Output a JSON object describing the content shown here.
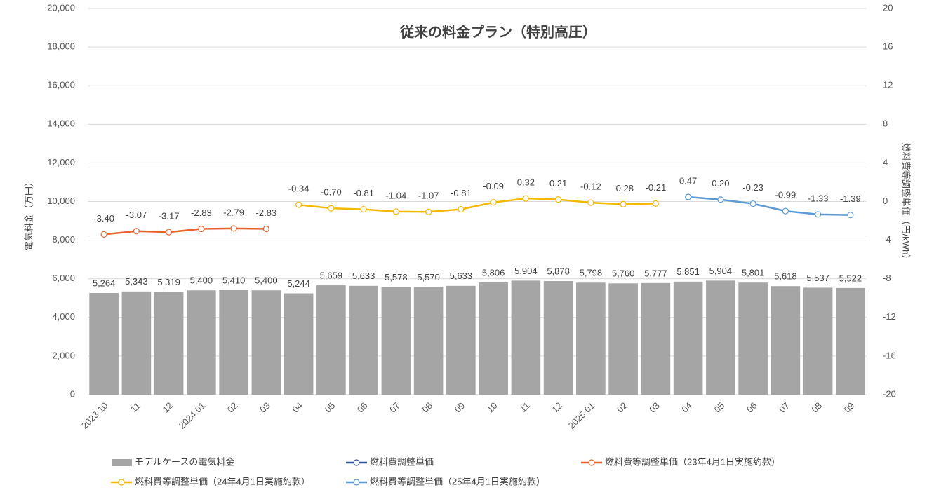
{
  "chart_data": {
    "type": "bar",
    "title": "従来の料金プラン（特別高圧）",
    "y_label": "電気料金（万円）",
    "y2_label": "燃料費等調整単価（円/kWh）",
    "categories": [
      "2023.10",
      "11",
      "12",
      "2024.01",
      "02",
      "03",
      "04",
      "05",
      "06",
      "07",
      "08",
      "09",
      "10",
      "11",
      "12",
      "2025.01",
      "02",
      "03",
      "04",
      "05",
      "06",
      "07",
      "08",
      "09"
    ],
    "series": [
      {
        "name": "モデルケースの電気料金",
        "type": "bar",
        "color": "#a5a5a5",
        "values": [
          5264,
          5343,
          5319,
          5400,
          5410,
          5400,
          5244,
          5659,
          5633,
          5578,
          5570,
          5633,
          5806,
          5904,
          5878,
          5798,
          5760,
          5777,
          5851,
          5904,
          5801,
          5618,
          5537,
          5522
        ],
        "value_labels": [
          "5,264",
          "5,343",
          "5,319",
          "5,400",
          "5,410",
          "5,400",
          "5,244",
          "5,659",
          "5,633",
          "5,578",
          "5,570",
          "5,633",
          "5,806",
          "5,904",
          "5,878",
          "5,798",
          "5,760",
          "5,777",
          "5,851",
          "5,904",
          "5,801",
          "5,618",
          "5,537",
          "5,522"
        ]
      },
      {
        "name": "燃料費調整単価",
        "type": "line",
        "axis": "y2",
        "color": "#2f5597",
        "values": [
          null,
          null,
          null,
          null,
          null,
          null,
          null,
          null,
          null,
          null,
          null,
          null,
          null,
          null,
          null,
          null,
          null,
          null,
          null,
          null,
          null,
          null,
          null,
          null
        ]
      },
      {
        "name": "燃料費等調整単価（23年4月1日実施約款）",
        "type": "line",
        "axis": "y2",
        "color": "#e8622a",
        "values": [
          -3.4,
          -3.07,
          -3.17,
          -2.83,
          -2.79,
          -2.83,
          null,
          null,
          null,
          null,
          null,
          null,
          null,
          null,
          null,
          null,
          null,
          null,
          null,
          null,
          null,
          null,
          null,
          null
        ],
        "value_labels": [
          "-3.40",
          "-3.07",
          "-3.17",
          "-2.83",
          "-2.79",
          "-2.83",
          null,
          null,
          null,
          null,
          null,
          null,
          null,
          null,
          null,
          null,
          null,
          null,
          null,
          null,
          null,
          null,
          null,
          null
        ]
      },
      {
        "name": "燃料費等調整単価（24年4月1日実施約款）",
        "type": "line",
        "axis": "y2",
        "color": "#f5b800",
        "values": [
          null,
          null,
          null,
          null,
          null,
          null,
          -0.34,
          -0.7,
          -0.81,
          -1.04,
          -1.07,
          -0.81,
          -0.09,
          0.32,
          0.21,
          -0.12,
          -0.28,
          -0.21,
          null,
          null,
          null,
          null,
          null,
          null
        ],
        "value_labels": [
          null,
          null,
          null,
          null,
          null,
          null,
          "-0.34",
          "-0.70",
          "-0.81",
          "-1.04",
          "-1.07",
          "-0.81",
          "-0.09",
          "0.32",
          "0.21",
          "-0.12",
          "-0.28",
          "-0.21",
          null,
          null,
          null,
          null,
          null,
          null
        ]
      },
      {
        "name": "燃料費等調整単価（25年4月1日実施約款）",
        "type": "line",
        "axis": "y2",
        "color": "#5b9bd5",
        "values": [
          null,
          null,
          null,
          null,
          null,
          null,
          null,
          null,
          null,
          null,
          null,
          null,
          null,
          null,
          null,
          null,
          null,
          null,
          0.47,
          0.2,
          -0.23,
          -0.99,
          -1.33,
          -1.39
        ],
        "value_labels": [
          null,
          null,
          null,
          null,
          null,
          null,
          null,
          null,
          null,
          null,
          null,
          null,
          null,
          null,
          null,
          null,
          null,
          null,
          "0.47",
          "0.20",
          "-0.23",
          "-0.99",
          "-1.33",
          "-1.39"
        ]
      }
    ],
    "ylim": [
      0,
      20000
    ],
    "yticks": [
      0,
      {
        "value": 2000,
        "label": "2,000"
      },
      {
        "value": 4000,
        "label": "4,000"
      },
      {
        "value": 6000,
        "label": "6,000"
      },
      {
        "value": 8000,
        "label": "8,000"
      },
      {
        "value": 10000,
        "label": "10,000"
      },
      {
        "value": 12000,
        "label": "12,000"
      },
      {
        "value": 14000,
        "label": "14,000"
      },
      {
        "value": 16000,
        "label": "16,000"
      },
      {
        "value": 18000,
        "label": "18,000"
      },
      {
        "value": 20000,
        "label": "20,000"
      }
    ],
    "y2lim": [
      -20,
      20
    ],
    "y2ticks": [
      -20,
      -16,
      -12,
      -8,
      -4,
      0,
      4,
      8,
      12,
      16,
      20
    ],
    "grid": true,
    "legend": "bottom"
  }
}
